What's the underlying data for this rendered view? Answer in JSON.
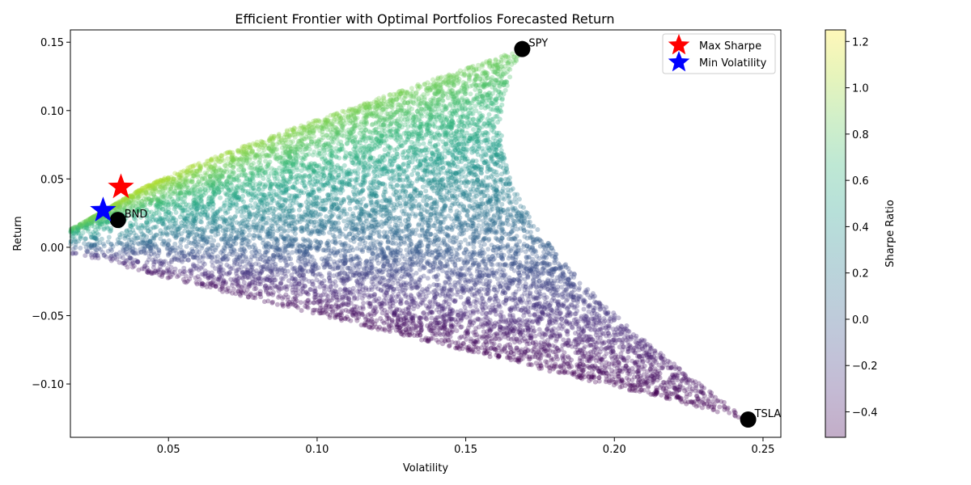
{
  "chart_data": {
    "type": "scatter",
    "title": "Efficient Frontier with Optimal Portfolios Forecasted Return",
    "xlabel": "Volatility",
    "ylabel": "Return",
    "xlim": [
      0.017,
      0.256
    ],
    "ylim": [
      -0.139,
      0.159
    ],
    "x_ticks": [
      0.05,
      0.1,
      0.15,
      0.2,
      0.25
    ],
    "x_tick_labels": [
      "0.05",
      "0.10",
      "0.15",
      "0.20",
      "0.25"
    ],
    "y_ticks": [
      -0.1,
      -0.05,
      0.0,
      0.05,
      0.1,
      0.15
    ],
    "y_tick_labels": [
      "−0.10",
      "−0.05",
      "0.00",
      "0.05",
      "0.10",
      "0.15"
    ],
    "grid": false,
    "colormap": "viridis",
    "colorbar": {
      "label": "Sharpe Ratio",
      "range": [
        -0.51,
        1.25
      ],
      "ticks": [
        -0.4,
        -0.2,
        0.0,
        0.2,
        0.4,
        0.6,
        0.8,
        1.0,
        1.2
      ],
      "tick_labels": [
        "−0.4",
        "−0.2",
        "0.0",
        "0.2",
        "0.4",
        "0.6",
        "0.8",
        "1.0",
        "1.2"
      ]
    },
    "assets": [
      {
        "name": "SPY",
        "x": 0.169,
        "y": 0.145
      },
      {
        "name": "BND",
        "x": 0.033,
        "y": 0.02
      },
      {
        "name": "TSLA",
        "x": 0.245,
        "y": -0.126
      }
    ],
    "optimal_points": [
      {
        "name": "Max Sharpe",
        "x": 0.034,
        "y": 0.044,
        "color": "#ff0000"
      },
      {
        "name": "Min Volatility",
        "x": 0.028,
        "y": 0.027,
        "color": "#0000ff"
      }
    ],
    "legend": {
      "placement": "top-right",
      "entries": [
        "Max Sharpe",
        "Min Volatility"
      ]
    },
    "simulated_portfolios": {
      "description": "Monte Carlo random portfolios of SPY, BND and TSLA colored by Sharpe ratio",
      "n_points": 10000
    }
  }
}
